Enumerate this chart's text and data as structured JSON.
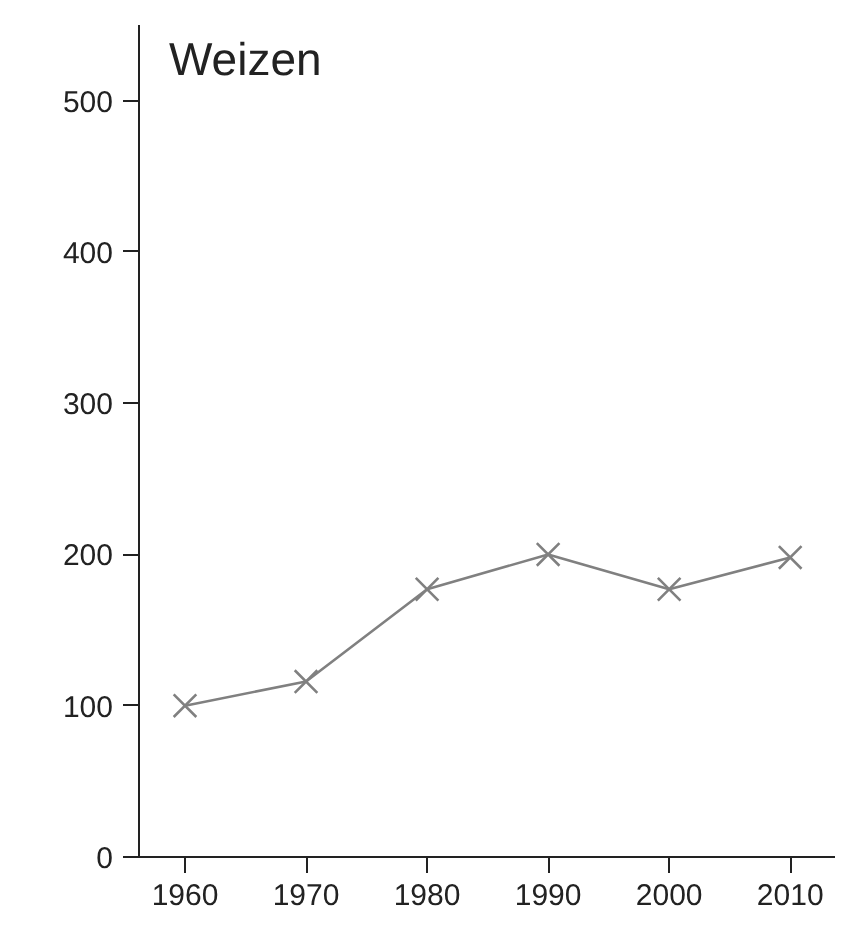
{
  "chart_data": {
    "type": "line",
    "title": "Weizen",
    "x": [
      1960,
      1970,
      1980,
      1990,
      2000,
      2010
    ],
    "series": [
      {
        "color": "#808080",
        "values": [
          100,
          116,
          177,
          200,
          177,
          198
        ]
      }
    ],
    "xlim": [
      1956.2,
      2013.7
    ],
    "ylim": [
      0,
      550
    ],
    "xticks": [
      1960,
      1970,
      1980,
      1990,
      2000,
      2010
    ],
    "yticks": [
      0,
      100,
      200,
      300,
      400,
      500
    ],
    "grid": false,
    "marker": "cross",
    "line_style": "solid"
  }
}
